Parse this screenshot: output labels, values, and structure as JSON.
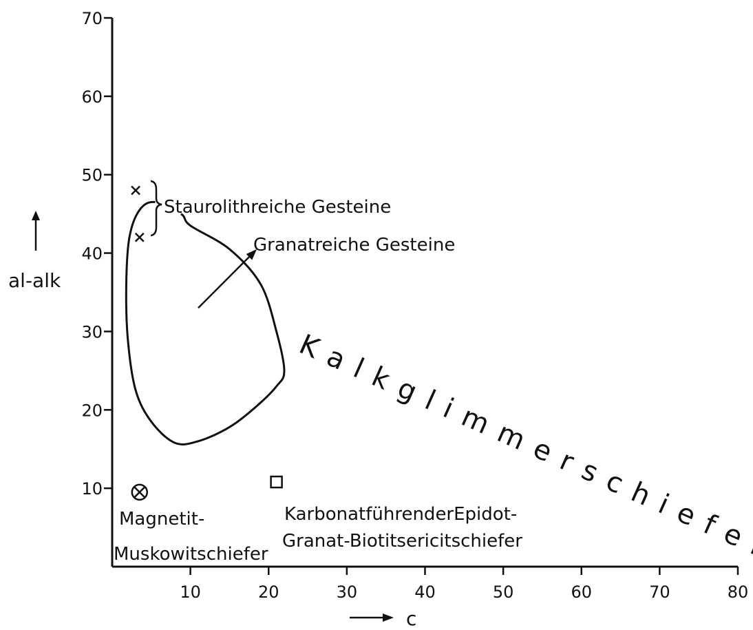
{
  "chart_data": {
    "type": "scatter",
    "title": "",
    "xlabel": "c",
    "ylabel": "al-alk",
    "xlim": [
      0,
      80
    ],
    "ylim": [
      0,
      70
    ],
    "x_ticks": [
      10,
      20,
      30,
      40,
      50,
      60,
      70,
      80
    ],
    "y_ticks": [
      10,
      20,
      30,
      40,
      50,
      60,
      70
    ],
    "grid": false,
    "points": [
      {
        "marker": "x",
        "x": 3,
        "y": 48
      },
      {
        "marker": "x",
        "x": 3.5,
        "y": 42
      },
      {
        "marker": "circle-x",
        "x": 3.5,
        "y": 9.5
      },
      {
        "marker": "square",
        "x": 21,
        "y": 10.8
      }
    ],
    "region_outline": [
      [
        5.5,
        46.5
      ],
      [
        3.5,
        45.5
      ],
      [
        2.2,
        42
      ],
      [
        1.8,
        36
      ],
      [
        2,
        29
      ],
      [
        3,
        22.5
      ],
      [
        5,
        18.5
      ],
      [
        8,
        15.8
      ],
      [
        11,
        16
      ],
      [
        15,
        17.8
      ],
      [
        18.5,
        20.5
      ],
      [
        21,
        23
      ],
      [
        22,
        25
      ],
      [
        21,
        30
      ],
      [
        19,
        36
      ],
      [
        15,
        40.5
      ],
      [
        10,
        43.5
      ],
      [
        8.8,
        45
      ]
    ],
    "annotations": {
      "staurolith": "Staurolithreiche Gesteine",
      "granat": "Granatreiche Gesteine",
      "kalkglimmer": "Kalkglimmerschiefer",
      "magnetit_line1": "Magnetit-",
      "magnetit_line2": "Muskowitschiefer",
      "karbonat_line1": "KarbonatführenderEpidot-",
      "karbonat_line2": "Granat-Biotitsericitschiefer"
    },
    "arrow": {
      "from": [
        11,
        33
      ],
      "to": [
        18.5,
        40.5
      ]
    }
  }
}
